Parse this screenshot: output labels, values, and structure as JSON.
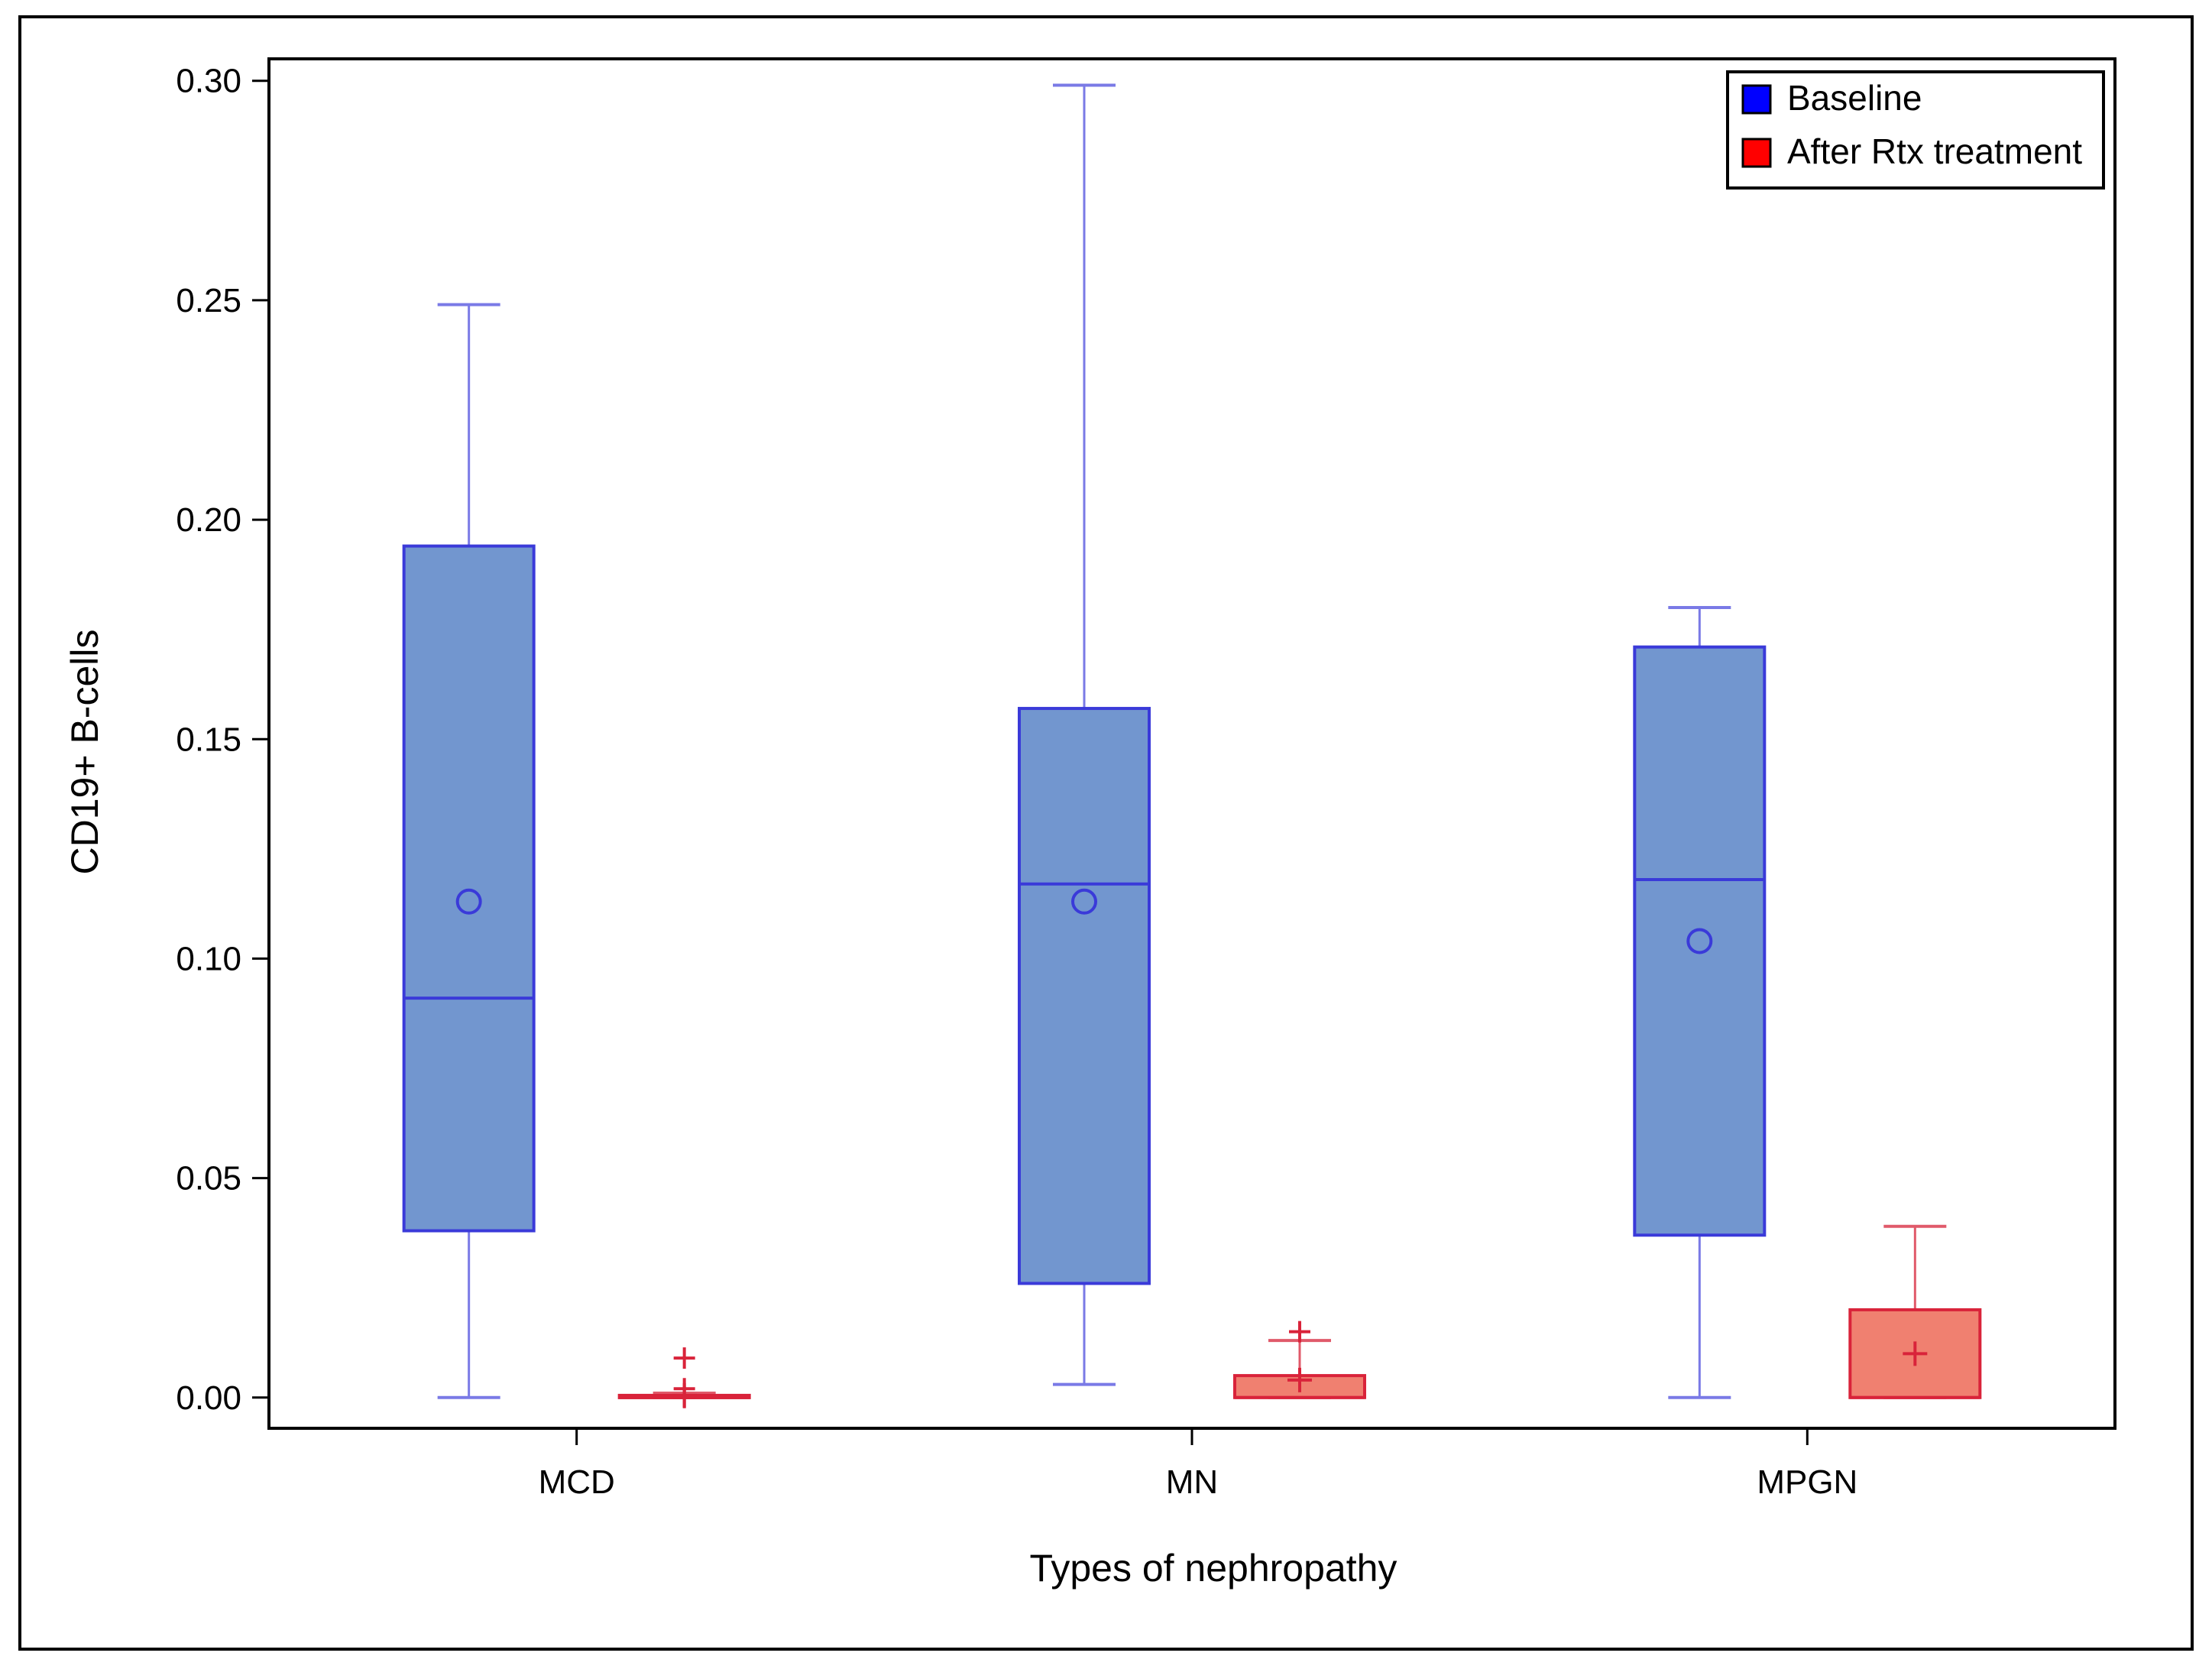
{
  "chart_data": {
    "type": "boxplot",
    "title": "",
    "xlabel": "Types of nephropathy",
    "ylabel": "CD19+ B-cells",
    "ylim": [
      -0.007,
      0.305
    ],
    "yticks": [
      0.0,
      0.05,
      0.1,
      0.15,
      0.2,
      0.25,
      0.3
    ],
    "ytick_labels": [
      "0.00",
      "0.05",
      "0.10",
      "0.15",
      "0.20",
      "0.25",
      "0.30"
    ],
    "categories": [
      "MCD",
      "MN",
      "MPGN"
    ],
    "legend": {
      "position": "top-right",
      "entries": [
        "Baseline",
        "After Rtx treatment"
      ]
    },
    "series": [
      {
        "name": "Baseline",
        "color": "#0000ff",
        "box_color": "#7296cf",
        "line_color": "#3a3ad9",
        "whisker_color": "#7a7ae6",
        "boxes": [
          {
            "category": "MCD",
            "whisker_low": 0.0,
            "q1": 0.038,
            "median": 0.091,
            "q3": 0.194,
            "whisker_high": 0.249,
            "mean": 0.113,
            "outliers": []
          },
          {
            "category": "MN",
            "whisker_low": 0.003,
            "q1": 0.026,
            "median": 0.117,
            "q3": 0.157,
            "whisker_high": 0.299,
            "mean": 0.113,
            "outliers": []
          },
          {
            "category": "MPGN",
            "whisker_low": 0.0,
            "q1": 0.037,
            "median": 0.118,
            "q3": 0.171,
            "whisker_high": 0.18,
            "mean": 0.104,
            "outliers": []
          }
        ]
      },
      {
        "name": "After Rtx treatment",
        "color": "#ff0000",
        "box_color": "#f08070",
        "line_color": "#d9233a",
        "whisker_color": "#e05a6a",
        "boxes": [
          {
            "category": "MCD",
            "whisker_low": 0.0,
            "q1": 0.0,
            "median": 0.0,
            "q3": 0.0005,
            "whisker_high": 0.001,
            "mean": 0.0005,
            "outliers": [
              0.009,
              0.002,
              0.0
            ]
          },
          {
            "category": "MN",
            "whisker_low": 0.0,
            "q1": 0.0,
            "median": 0.0,
            "q3": 0.005,
            "whisker_high": 0.013,
            "mean": 0.004,
            "outliers": [
              0.015
            ]
          },
          {
            "category": "MPGN",
            "whisker_low": 0.0,
            "q1": 0.0,
            "median": 0.0,
            "q3": 0.02,
            "whisker_high": 0.039,
            "mean": 0.01,
            "outliers": []
          }
        ]
      }
    ]
  }
}
